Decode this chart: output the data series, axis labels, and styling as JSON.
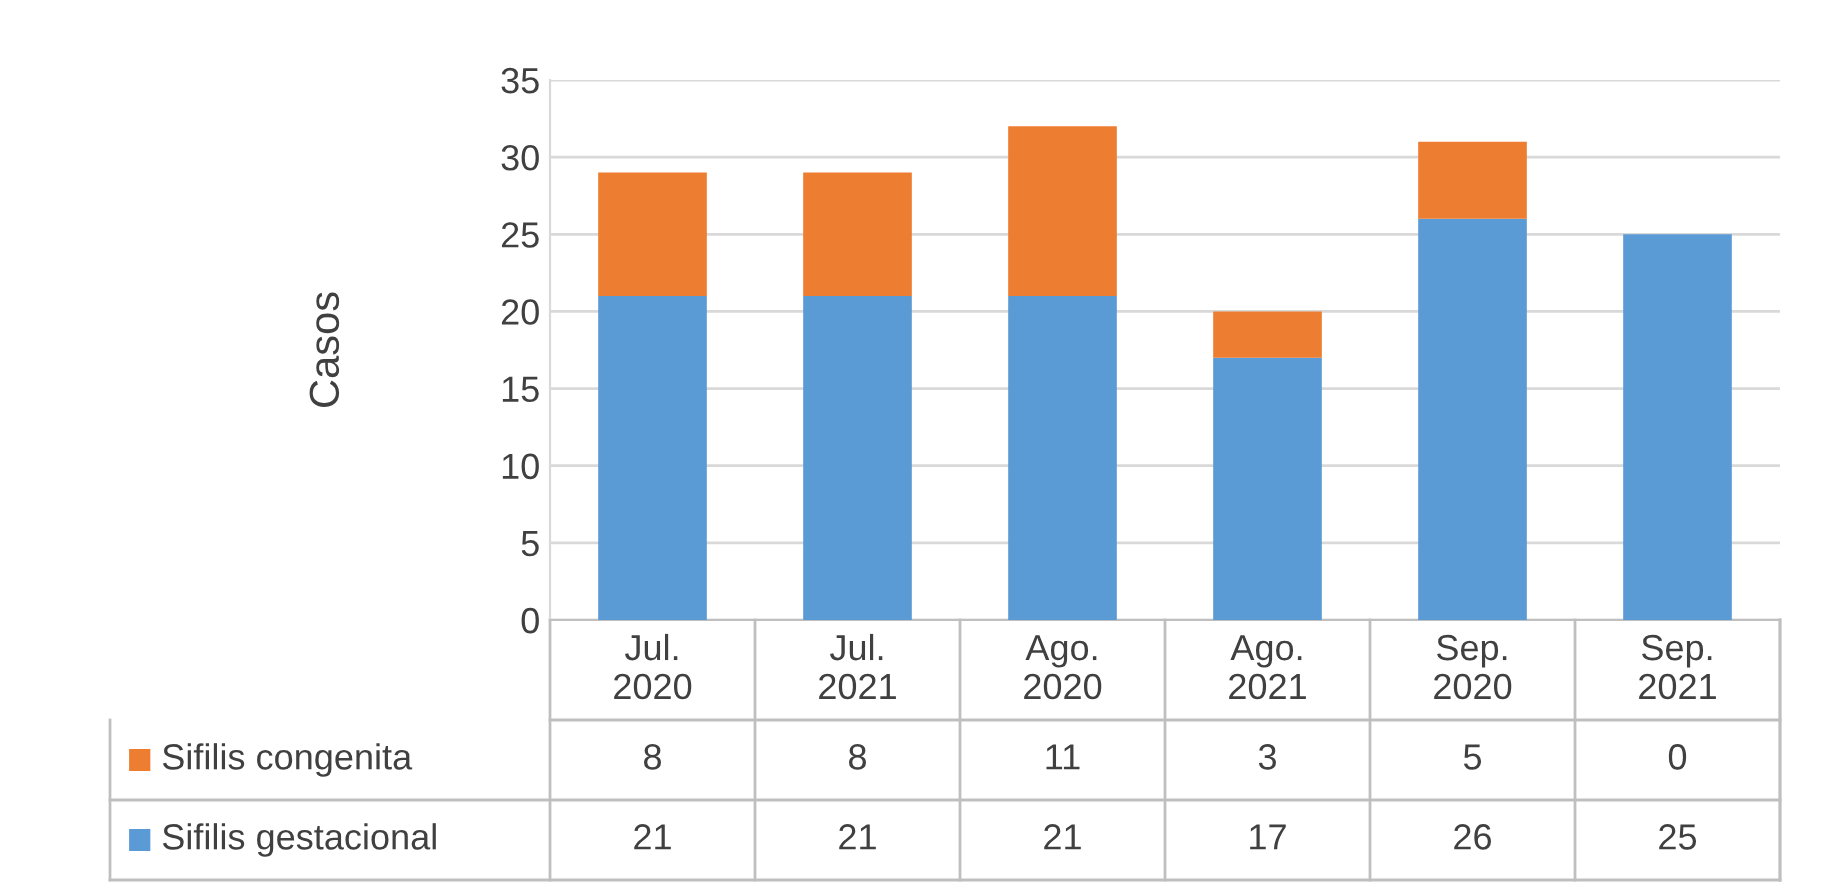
{
  "chart_data": {
    "type": "bar",
    "stacked": true,
    "ylabel": "Casos",
    "categories": [
      "Jul. 2020",
      "Jul. 2021",
      "Ago. 2020",
      "Ago. 2021",
      "Sep. 2020",
      "Sep. 2021"
    ],
    "series": [
      {
        "name": "Sifilis gestacional",
        "color": "#5b9bd5",
        "values": [
          21,
          21,
          21,
          17,
          26,
          25
        ]
      },
      {
        "name": "Sifilis congenita",
        "color": "#ed7d31",
        "values": [
          8,
          8,
          11,
          3,
          5,
          0
        ]
      }
    ],
    "ylim": [
      0,
      35
    ],
    "yticks": [
      0,
      5,
      10,
      15,
      20,
      25,
      30,
      35
    ],
    "grid": "y",
    "legend": "bottom",
    "data_labels": true
  }
}
